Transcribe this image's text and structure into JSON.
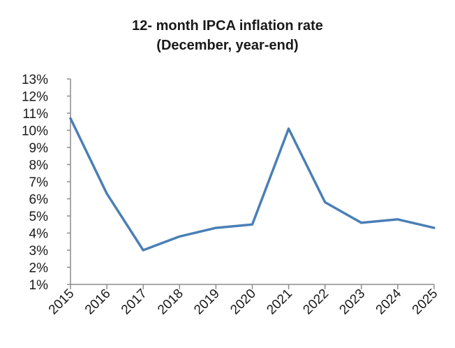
{
  "chart_data": {
    "type": "line",
    "title_lines": [
      "12- month IPCA inflation rate",
      "(December, year-end)"
    ],
    "xlabel": "",
    "ylabel": "",
    "categories": [
      "2015",
      "2016",
      "2017",
      "2018",
      "2019",
      "2020",
      "2021",
      "2022",
      "2023",
      "2024",
      "2025"
    ],
    "series": [
      {
        "values": [
          10.7,
          6.3,
          3.0,
          3.8,
          4.3,
          4.5,
          10.1,
          5.8,
          4.6,
          4.8,
          4.3
        ],
        "color": "#4a7fb5"
      }
    ],
    "ylim": [
      1,
      13
    ],
    "yticks": [
      1,
      2,
      3,
      4,
      5,
      6,
      7,
      8,
      9,
      10,
      11,
      12,
      13
    ],
    "y_tick_format": "percent",
    "grid": false,
    "legend": "none"
  }
}
